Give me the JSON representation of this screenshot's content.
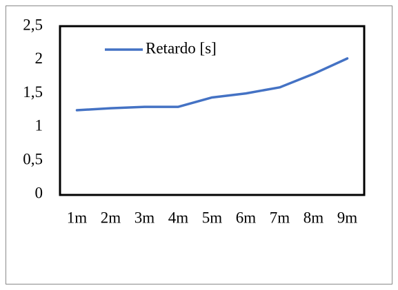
{
  "chart_data": {
    "type": "line",
    "categories": [
      "1m",
      "2m",
      "3m",
      "4m",
      "5m",
      "6m",
      "7m",
      "8m",
      "9m"
    ],
    "series": [
      {
        "name": "Retardo [s]",
        "color": "#4472c4",
        "values": [
          1.25,
          1.28,
          1.3,
          1.3,
          1.44,
          1.5,
          1.59,
          1.79,
          2.02
        ]
      }
    ],
    "ylim": [
      0,
      2.5
    ],
    "yticks": [
      0,
      {
        "value": 0.5,
        "label": "0,5"
      },
      1,
      {
        "value": 1.5,
        "label": "1,5"
      },
      2,
      {
        "value": 2.5,
        "label": "2,5"
      }
    ],
    "grid": false,
    "legend": "top-left"
  }
}
